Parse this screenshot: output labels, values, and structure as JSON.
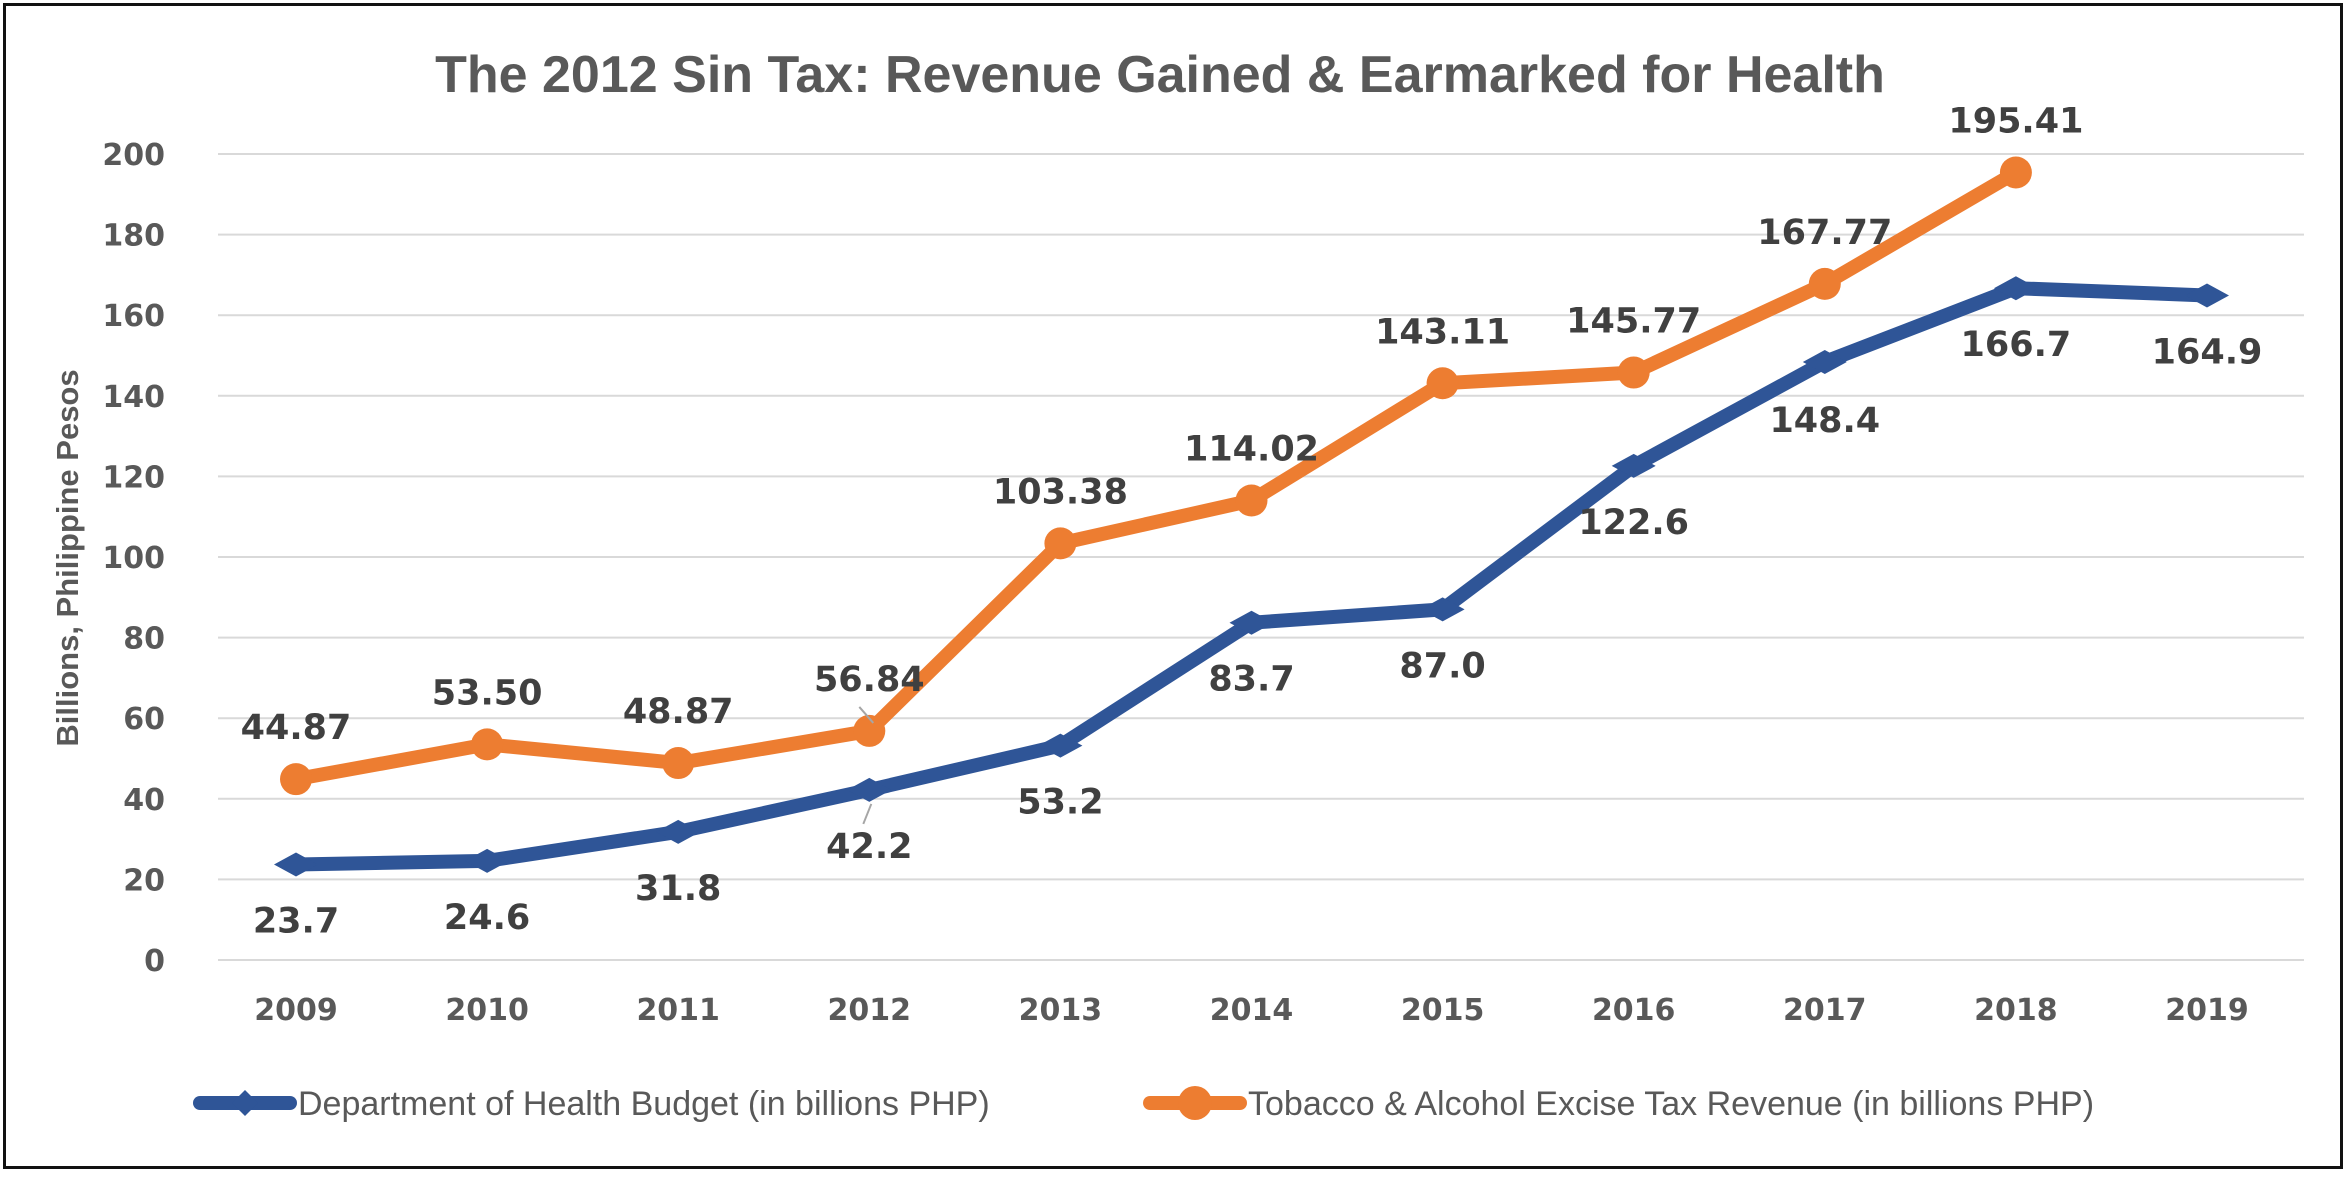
{
  "chart_data": {
    "type": "line",
    "title": "The 2012 Sin Tax: Revenue Gained & Earmarked for Health",
    "xlabel": "",
    "ylabel": "Billions, Philippine Pesos",
    "categories": [
      "2009",
      "2010",
      "2011",
      "2012",
      "2013",
      "2014",
      "2015",
      "2016",
      "2017",
      "2018",
      "2019"
    ],
    "ylim": [
      0,
      200
    ],
    "yticks": [
      0,
      20,
      40,
      60,
      80,
      100,
      120,
      140,
      160,
      180,
      200
    ],
    "grid": true,
    "legend_position": "bottom",
    "series": [
      {
        "name": "Department of Health Budget (in billions PHP)",
        "color": "#2F5597",
        "marker": "diamond",
        "values": [
          23.7,
          24.6,
          31.8,
          42.2,
          53.2,
          83.7,
          87.0,
          122.6,
          148.4,
          166.7,
          164.9
        ],
        "labels": [
          "23.7",
          "24.6",
          "31.8",
          "42.2",
          "53.2",
          "83.7",
          "87.0",
          "122.6",
          "148.4",
          "166.7",
          "164.9"
        ]
      },
      {
        "name": "Tobacco & Alcohol Excise Tax Revenue (in billions PHP)",
        "color": "#ED7D31",
        "marker": "circle",
        "values": [
          44.87,
          53.5,
          48.87,
          56.84,
          103.38,
          114.02,
          143.11,
          145.77,
          167.77,
          195.41,
          null
        ],
        "labels": [
          "44.87",
          "53.50",
          "48.87",
          "56.84",
          "103.38",
          "114.02",
          "143.11",
          "145.77",
          "167.77",
          "195.41",
          null
        ]
      }
    ]
  }
}
